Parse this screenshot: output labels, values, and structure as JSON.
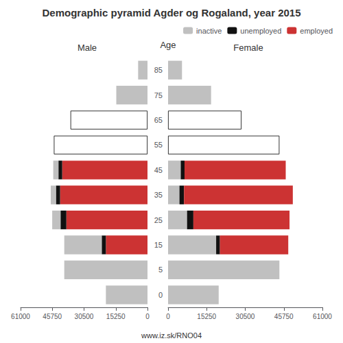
{
  "chart_data": [
    {
      "type": "bar",
      "orientation": "horizontal",
      "stacked": true,
      "title": "Demographic pyramid Agder og Rogaland, year 2015",
      "subtitle": "Male",
      "categories": [
        "0",
        "5",
        "15",
        "25",
        "35",
        "45",
        "55",
        "65",
        "75",
        "85"
      ],
      "series": [
        {
          "name": "employed",
          "color": "#cc3333",
          "values": [
            0,
            0,
            20000,
            39000,
            42000,
            41000,
            0,
            0,
            0,
            0
          ]
        },
        {
          "name": "unemployed",
          "color": "#111111",
          "values": [
            0,
            0,
            2000,
            2800,
            2000,
            1800,
            0,
            0,
            0,
            0
          ]
        },
        {
          "name": "inactive",
          "color": "#c0c0c0",
          "values": [
            20000,
            40000,
            18000,
            4000,
            2500,
            2500,
            45000,
            37000,
            15000,
            4500
          ],
          "colors": [
            "#c0c0c0",
            "#c0c0c0",
            "#c0c0c0",
            "#c0c0c0",
            "#c0c0c0",
            "#c0c0c0",
            "#ffffff",
            "#ffffff",
            "#c0c0c0",
            "#c0c0c0"
          ]
        }
      ],
      "xlim": [
        0,
        61000
      ],
      "xticks": [
        0,
        15250,
        30500,
        45750,
        61000
      ],
      "grid": false,
      "tick_labels": "x",
      "annotations": [
        "www.iz.sk/RNO04"
      ]
    },
    {
      "type": "bar",
      "orientation": "horizontal",
      "stacked": true,
      "subtitle": "Female",
      "ylabel": "Age",
      "categories": [
        "0",
        "5",
        "15",
        "25",
        "35",
        "45",
        "55",
        "65",
        "75",
        "85"
      ],
      "series": [
        {
          "name": "inactive",
          "color": "#c0c0c0",
          "values": [
            20000,
            44000,
            19000,
            7500,
            4500,
            5000,
            44000,
            29000,
            17000,
            5500
          ],
          "colors": [
            "#c0c0c0",
            "#c0c0c0",
            "#c0c0c0",
            "#c0c0c0",
            "#c0c0c0",
            "#c0c0c0",
            "#ffffff",
            "#ffffff",
            "#c0c0c0",
            "#c0c0c0"
          ]
        },
        {
          "name": "unemployed",
          "color": "#111111",
          "values": [
            0,
            0,
            1500,
            2500,
            1800,
            1500,
            0,
            0,
            0,
            0
          ]
        },
        {
          "name": "employed",
          "color": "#cc3333",
          "values": [
            0,
            0,
            27000,
            38000,
            43000,
            40000,
            0,
            0,
            0,
            0
          ]
        }
      ],
      "xlim": [
        0,
        61000
      ],
      "xticks": [
        0,
        15250,
        30500,
        45750,
        61000
      ],
      "grid": false,
      "legend": "upper right"
    }
  ]
}
